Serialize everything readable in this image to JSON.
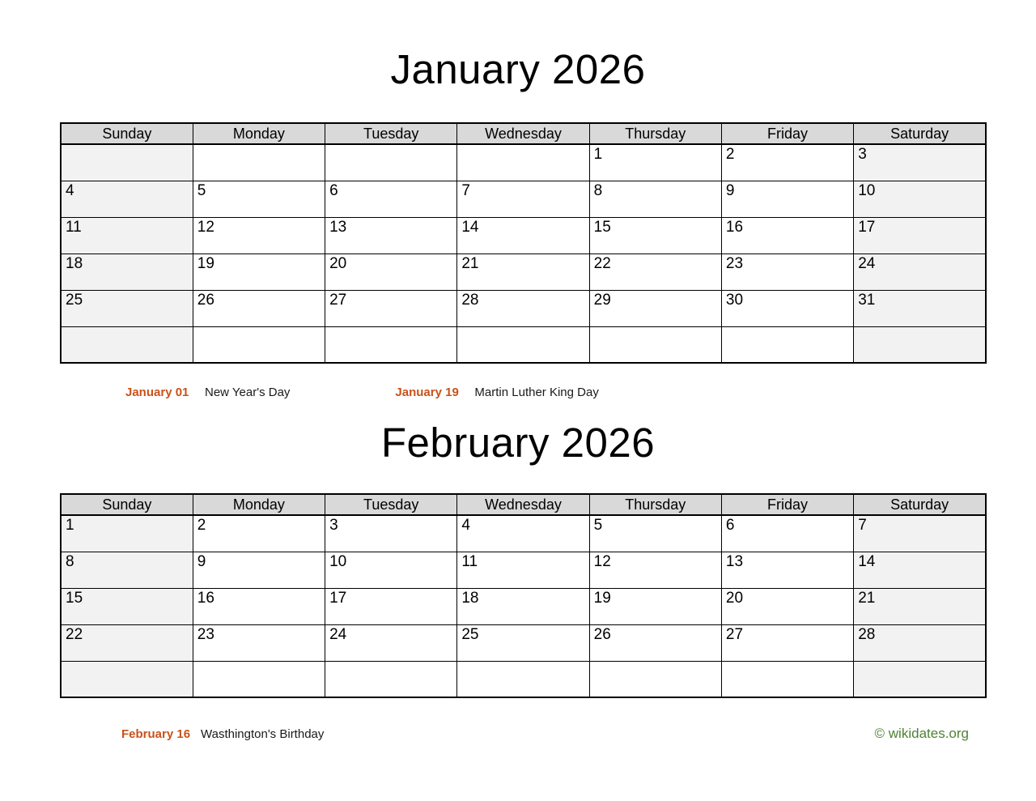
{
  "colors": {
    "holiday_date_accent": "#c9521a",
    "copyright_green": "#4e8234",
    "header_row_bg": "#d9d9d9",
    "weekend_cell_bg": "#f2f2f2",
    "grid_border": "#000000"
  },
  "months": [
    {
      "title": "January 2026",
      "day_headers": [
        "Sunday",
        "Monday",
        "Tuesday",
        "Wednesday",
        "Thursday",
        "Friday",
        "Saturday"
      ],
      "weeks": [
        [
          "",
          "",
          "",
          "",
          "1",
          "2",
          "3"
        ],
        [
          "4",
          "5",
          "6",
          "7",
          "8",
          "9",
          "10"
        ],
        [
          "11",
          "12",
          "13",
          "14",
          "15",
          "16",
          "17"
        ],
        [
          "18",
          "19",
          "20",
          "21",
          "22",
          "23",
          "24"
        ],
        [
          "25",
          "26",
          "27",
          "28",
          "29",
          "30",
          "31"
        ],
        [
          "",
          "",
          "",
          "",
          "",
          "",
          ""
        ]
      ],
      "holidays": [
        {
          "date": "January 01",
          "name": "New Year's Day"
        },
        {
          "date": "January 19",
          "name": "Martin Luther King Day"
        }
      ]
    },
    {
      "title": "February 2026",
      "day_headers": [
        "Sunday",
        "Monday",
        "Tuesday",
        "Wednesday",
        "Thursday",
        "Friday",
        "Saturday"
      ],
      "weeks": [
        [
          "1",
          "2",
          "3",
          "4",
          "5",
          "6",
          "7"
        ],
        [
          "8",
          "9",
          "10",
          "11",
          "12",
          "13",
          "14"
        ],
        [
          "15",
          "16",
          "17",
          "18",
          "19",
          "20",
          "21"
        ],
        [
          "22",
          "23",
          "24",
          "25",
          "26",
          "27",
          "28"
        ],
        [
          "",
          "",
          "",
          "",
          "",
          "",
          ""
        ]
      ],
      "holidays": [
        {
          "date": "February 16",
          "name": "Wasthington's Birthday"
        }
      ]
    }
  ],
  "footer": {
    "copyright": "© wikidates.org"
  }
}
